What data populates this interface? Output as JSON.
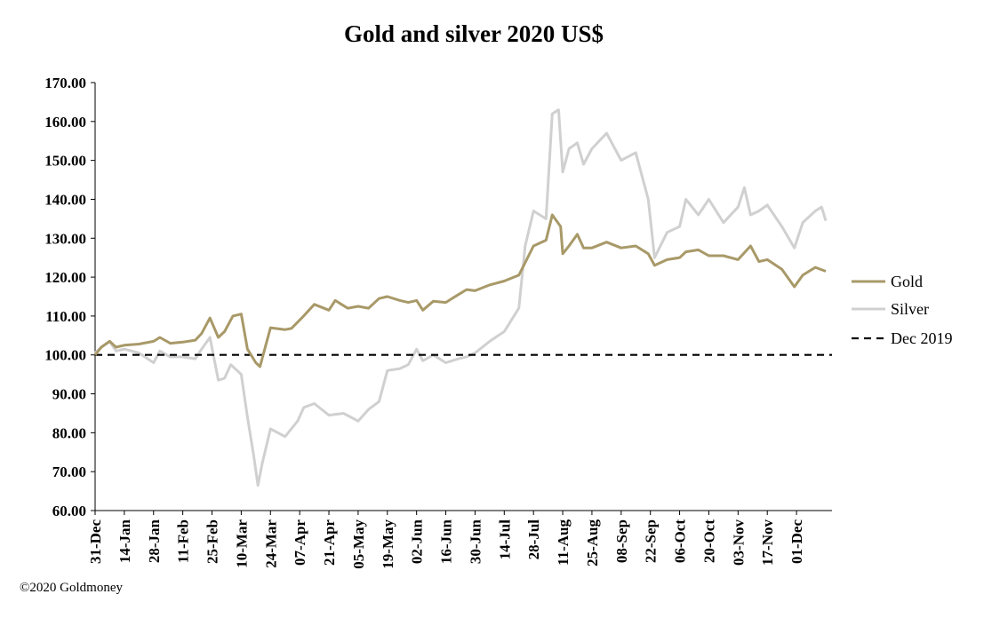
{
  "copyright": "©2020 Goldmoney",
  "chart_data": {
    "type": "line",
    "title": "Gold and silver 2020  US$",
    "xlabel": "",
    "ylabel": "",
    "ylim": [
      60,
      170
    ],
    "yticks": [
      "60.00",
      "70.00",
      "80.00",
      "90.00",
      "100.00",
      "110.00",
      "120.00",
      "130.00",
      "140.00",
      "150.00",
      "160.00",
      "170.00"
    ],
    "xlim": [
      "2019-12-31",
      "2020-12-18"
    ],
    "xticks": [
      "31-Dec",
      "14-Jan",
      "28-Jan",
      "11-Feb",
      "25-Feb",
      "10-Mar",
      "24-Mar",
      "07-Apr",
      "21-Apr",
      "05-May",
      "19-May",
      "02-Jun",
      "16-Jun",
      "30-Jun",
      "14-Jul",
      "28-Jul",
      "11-Aug",
      "25-Aug",
      "08-Sep",
      "22-Sep",
      "06-Oct",
      "20-Oct",
      "03-Nov",
      "17-Nov",
      "01-Dec"
    ],
    "xtick_dates": [
      "2019-12-31",
      "2020-01-14",
      "2020-01-28",
      "2020-02-11",
      "2020-02-25",
      "2020-03-10",
      "2020-03-24",
      "2020-04-07",
      "2020-04-21",
      "2020-05-05",
      "2020-05-19",
      "2020-06-02",
      "2020-06-16",
      "2020-06-30",
      "2020-07-14",
      "2020-07-28",
      "2020-08-11",
      "2020-08-25",
      "2020-09-08",
      "2020-09-22",
      "2020-10-06",
      "2020-10-20",
      "2020-11-03",
      "2020-11-17",
      "2020-12-01"
    ],
    "legend_position": "right",
    "colors": {
      "gold": "#a89968",
      "silver": "#d0d0d0",
      "reference": "#000000"
    },
    "series": [
      {
        "name": "Gold",
        "color": "#a89968",
        "points": [
          [
            "2019-12-31",
            100
          ],
          [
            "2020-01-03",
            102
          ],
          [
            "2020-01-07",
            103.5
          ],
          [
            "2020-01-10",
            102
          ],
          [
            "2020-01-14",
            102.5
          ],
          [
            "2020-01-21",
            102.8
          ],
          [
            "2020-01-28",
            103.5
          ],
          [
            "2020-01-31",
            104.5
          ],
          [
            "2020-02-05",
            103
          ],
          [
            "2020-02-11",
            103.3
          ],
          [
            "2020-02-17",
            103.8
          ],
          [
            "2020-02-20",
            105.5
          ],
          [
            "2020-02-24",
            109.5
          ],
          [
            "2020-02-28",
            104.5
          ],
          [
            "2020-03-02",
            106
          ],
          [
            "2020-03-06",
            110
          ],
          [
            "2020-03-10",
            110.5
          ],
          [
            "2020-03-13",
            101.5
          ],
          [
            "2020-03-17",
            98
          ],
          [
            "2020-03-19",
            97
          ],
          [
            "2020-03-24",
            107
          ],
          [
            "2020-03-31",
            106.5
          ],
          [
            "2020-04-03",
            106.8
          ],
          [
            "2020-04-08",
            109.5
          ],
          [
            "2020-04-14",
            113
          ],
          [
            "2020-04-21",
            111.5
          ],
          [
            "2020-04-24",
            114
          ],
          [
            "2020-04-30",
            112
          ],
          [
            "2020-05-05",
            112.5
          ],
          [
            "2020-05-10",
            112
          ],
          [
            "2020-05-15",
            114.5
          ],
          [
            "2020-05-19",
            115
          ],
          [
            "2020-05-25",
            114
          ],
          [
            "2020-05-29",
            113.5
          ],
          [
            "2020-06-02",
            114
          ],
          [
            "2020-06-05",
            111.5
          ],
          [
            "2020-06-10",
            113.8
          ],
          [
            "2020-06-16",
            113.5
          ],
          [
            "2020-06-22",
            115.5
          ],
          [
            "2020-06-26",
            116.8
          ],
          [
            "2020-06-30",
            116.5
          ],
          [
            "2020-07-07",
            118
          ],
          [
            "2020-07-14",
            119
          ],
          [
            "2020-07-21",
            120.5
          ],
          [
            "2020-07-28",
            128
          ],
          [
            "2020-08-03",
            129.5
          ],
          [
            "2020-08-06",
            136
          ],
          [
            "2020-08-10",
            133
          ],
          [
            "2020-08-11",
            126
          ],
          [
            "2020-08-14",
            128
          ],
          [
            "2020-08-18",
            131
          ],
          [
            "2020-08-21",
            127.5
          ],
          [
            "2020-08-25",
            127.5
          ],
          [
            "2020-09-01",
            129
          ],
          [
            "2020-09-08",
            127.5
          ],
          [
            "2020-09-15",
            128
          ],
          [
            "2020-09-21",
            126
          ],
          [
            "2020-09-24",
            123
          ],
          [
            "2020-09-30",
            124.5
          ],
          [
            "2020-10-06",
            125
          ],
          [
            "2020-10-09",
            126.5
          ],
          [
            "2020-10-15",
            127
          ],
          [
            "2020-10-20",
            125.5
          ],
          [
            "2020-10-27",
            125.5
          ],
          [
            "2020-11-03",
            124.5
          ],
          [
            "2020-11-09",
            128
          ],
          [
            "2020-11-13",
            124
          ],
          [
            "2020-11-17",
            124.5
          ],
          [
            "2020-11-24",
            122
          ],
          [
            "2020-11-30",
            117.5
          ],
          [
            "2020-12-04",
            120.5
          ],
          [
            "2020-12-10",
            122.5
          ],
          [
            "2020-12-15",
            121.5
          ]
        ]
      },
      {
        "name": "Silver",
        "color": "#d0d0d0",
        "points": [
          [
            "2019-12-31",
            100.5
          ],
          [
            "2020-01-03",
            102
          ],
          [
            "2020-01-07",
            103.5
          ],
          [
            "2020-01-10",
            101
          ],
          [
            "2020-01-14",
            101.5
          ],
          [
            "2020-01-21",
            100.5
          ],
          [
            "2020-01-28",
            98
          ],
          [
            "2020-01-31",
            101
          ],
          [
            "2020-02-05",
            99.5
          ],
          [
            "2020-02-11",
            99.5
          ],
          [
            "2020-02-17",
            99
          ],
          [
            "2020-02-20",
            101.5
          ],
          [
            "2020-02-24",
            104.5
          ],
          [
            "2020-02-28",
            93.5
          ],
          [
            "2020-03-02",
            94
          ],
          [
            "2020-03-05",
            97.5
          ],
          [
            "2020-03-10",
            95
          ],
          [
            "2020-03-13",
            84
          ],
          [
            "2020-03-16",
            74
          ],
          [
            "2020-03-18",
            66.5
          ],
          [
            "2020-03-20",
            72
          ],
          [
            "2020-03-24",
            81
          ],
          [
            "2020-03-31",
            79
          ],
          [
            "2020-04-06",
            83
          ],
          [
            "2020-04-09",
            86.5
          ],
          [
            "2020-04-14",
            87.5
          ],
          [
            "2020-04-21",
            84.5
          ],
          [
            "2020-04-28",
            85
          ],
          [
            "2020-05-05",
            83
          ],
          [
            "2020-05-10",
            86
          ],
          [
            "2020-05-15",
            88
          ],
          [
            "2020-05-19",
            96
          ],
          [
            "2020-05-25",
            96.5
          ],
          [
            "2020-05-29",
            97.5
          ],
          [
            "2020-06-02",
            101.5
          ],
          [
            "2020-06-05",
            98.5
          ],
          [
            "2020-06-10",
            100
          ],
          [
            "2020-06-16",
            98
          ],
          [
            "2020-06-22",
            99
          ],
          [
            "2020-06-26",
            99.5
          ],
          [
            "2020-06-30",
            100.5
          ],
          [
            "2020-07-07",
            103.5
          ],
          [
            "2020-07-14",
            106
          ],
          [
            "2020-07-21",
            112
          ],
          [
            "2020-07-24",
            128
          ],
          [
            "2020-07-28",
            137
          ],
          [
            "2020-08-03",
            135
          ],
          [
            "2020-08-06",
            162
          ],
          [
            "2020-08-09",
            163
          ],
          [
            "2020-08-11",
            147
          ],
          [
            "2020-08-14",
            153
          ],
          [
            "2020-08-18",
            154.5
          ],
          [
            "2020-08-21",
            149
          ],
          [
            "2020-08-25",
            153
          ],
          [
            "2020-09-01",
            157
          ],
          [
            "2020-09-08",
            150
          ],
          [
            "2020-09-15",
            152
          ],
          [
            "2020-09-21",
            140
          ],
          [
            "2020-09-24",
            125
          ],
          [
            "2020-09-30",
            131.5
          ],
          [
            "2020-10-06",
            133
          ],
          [
            "2020-10-09",
            140
          ],
          [
            "2020-10-15",
            136
          ],
          [
            "2020-10-20",
            140
          ],
          [
            "2020-10-27",
            134
          ],
          [
            "2020-11-03",
            138
          ],
          [
            "2020-11-06",
            143
          ],
          [
            "2020-11-09",
            136
          ],
          [
            "2020-11-13",
            137
          ],
          [
            "2020-11-17",
            138.5
          ],
          [
            "2020-11-24",
            133
          ],
          [
            "2020-11-30",
            127.5
          ],
          [
            "2020-12-04",
            134
          ],
          [
            "2020-12-10",
            137
          ],
          [
            "2020-12-13",
            138
          ],
          [
            "2020-12-15",
            134.5
          ]
        ]
      },
      {
        "name": "Dec 2019",
        "color": "#000000",
        "dashed": true,
        "points": [
          [
            "2019-12-31",
            100
          ],
          [
            "2020-12-18",
            100
          ]
        ]
      }
    ]
  }
}
